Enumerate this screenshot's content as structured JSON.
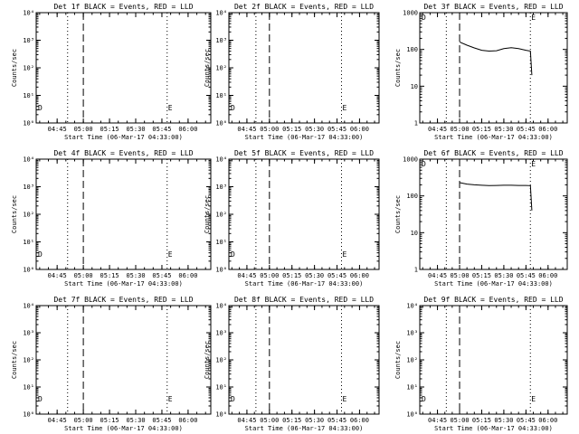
{
  "chart_data": [
    {
      "type": "line",
      "title": "Det 1f BLACK = Events, RED = LLD",
      "ylabel": "Counts/sec",
      "xlabel": "Start Time (06-Mar-17 04:33:00)",
      "x_ticks": [
        "04:45",
        "05:00",
        "05:15",
        "05:30",
        "05:45",
        "06:00"
      ],
      "yscale": "log",
      "ylim": [
        1,
        10000
      ],
      "y_ticks": [
        "10⁰",
        "10¹",
        "10²",
        "10³",
        "10⁴"
      ],
      "markers": [
        "D",
        "E"
      ],
      "series": []
    },
    {
      "type": "line",
      "title": "Det 2f BLACK = Events, RED = LLD",
      "ylabel": "Counts/sec",
      "xlabel": "Start Time (06-Mar-17 04:33:00)",
      "x_ticks": [
        "04:45",
        "05:00",
        "05:15",
        "05:30",
        "05:45",
        "06:00"
      ],
      "yscale": "log",
      "ylim": [
        1,
        10000
      ],
      "y_ticks": [
        "10⁰",
        "10¹",
        "10²",
        "10³",
        "10⁴"
      ],
      "markers": [
        "D",
        "E"
      ],
      "series": []
    },
    {
      "type": "line",
      "title": "Det 3f BLACK = Events, RED = LLD",
      "ylabel": "Counts/sec",
      "xlabel": "Start Time (06-Mar-17 04:33:00)",
      "x_ticks": [
        "04:45",
        "05:00",
        "05:15",
        "05:30",
        "05:45",
        "06:00"
      ],
      "yscale": "log",
      "ylim": [
        1,
        1000
      ],
      "y_ticks": [
        "1",
        "10",
        "100",
        "1000"
      ],
      "markers": [
        "D",
        "E"
      ],
      "series": [
        {
          "color": "#000000",
          "x": [
            "05:00",
            "05:05",
            "05:10",
            "05:15",
            "05:20",
            "05:25",
            "05:30",
            "05:35",
            "05:40",
            "05:45",
            "05:48",
            "05:49"
          ],
          "values": [
            160,
            130,
            110,
            95,
            90,
            92,
            105,
            112,
            105,
            95,
            90,
            20
          ]
        }
      ]
    },
    {
      "type": "line",
      "title": "Det 4f BLACK = Events, RED = LLD",
      "ylabel": "Counts/sec",
      "xlabel": "Start Time (06-Mar-17 04:33:00)",
      "x_ticks": [
        "04:45",
        "05:00",
        "05:15",
        "05:30",
        "05:45",
        "06:00"
      ],
      "yscale": "log",
      "ylim": [
        1,
        10000
      ],
      "y_ticks": [
        "10⁰",
        "10¹",
        "10²",
        "10³",
        "10⁴"
      ],
      "markers": [
        "D",
        "E"
      ],
      "series": []
    },
    {
      "type": "line",
      "title": "Det 5f BLACK = Events, RED = LLD",
      "ylabel": "Counts/sec",
      "xlabel": "Start Time (06-Mar-17 04:33:00)",
      "x_ticks": [
        "04:45",
        "05:00",
        "05:15",
        "05:30",
        "05:45",
        "06:00"
      ],
      "yscale": "log",
      "ylim": [
        1,
        10000
      ],
      "y_ticks": [
        "10⁰",
        "10¹",
        "10²",
        "10³",
        "10⁴"
      ],
      "markers": [
        "D",
        "E"
      ],
      "series": []
    },
    {
      "type": "line",
      "title": "Det 6f BLACK = Events, RED = LLD",
      "ylabel": "Counts/sec",
      "xlabel": "Start Time (06-Mar-17 04:33:00)",
      "x_ticks": [
        "04:45",
        "05:00",
        "05:15",
        "05:30",
        "05:45",
        "06:00"
      ],
      "yscale": "log",
      "ylim": [
        1,
        1000
      ],
      "y_ticks": [
        "1",
        "10",
        "100",
        "1000"
      ],
      "markers": [
        "D",
        "E"
      ],
      "series": [
        {
          "color": "#000000",
          "x": [
            "05:00",
            "05:05",
            "05:10",
            "05:15",
            "05:20",
            "05:25",
            "05:30",
            "05:35",
            "05:40",
            "05:45",
            "05:48",
            "05:49"
          ],
          "values": [
            230,
            210,
            200,
            195,
            190,
            192,
            195,
            195,
            193,
            192,
            190,
            40
          ]
        }
      ]
    },
    {
      "type": "line",
      "title": "Det 7f BLACK = Events, RED = LLD",
      "ylabel": "Counts/sec",
      "xlabel": "Start Time (06-Mar-17 04:33:00)",
      "x_ticks": [
        "04:45",
        "05:00",
        "05:15",
        "05:30",
        "05:45",
        "06:00"
      ],
      "yscale": "log",
      "ylim": [
        1,
        10000
      ],
      "y_ticks": [
        "10⁰",
        "10¹",
        "10²",
        "10³",
        "10⁴"
      ],
      "markers": [
        "D",
        "E"
      ],
      "series": []
    },
    {
      "type": "line",
      "title": "Det 8f BLACK = Events, RED = LLD",
      "ylabel": "Counts/sec",
      "xlabel": "Start Time (06-Mar-17 04:33:00)",
      "x_ticks": [
        "04:45",
        "05:00",
        "05:15",
        "05:30",
        "05:45",
        "06:00"
      ],
      "yscale": "log",
      "ylim": [
        1,
        10000
      ],
      "y_ticks": [
        "10⁰",
        "10¹",
        "10²",
        "10³",
        "10⁴"
      ],
      "markers": [
        "D",
        "E"
      ],
      "series": []
    },
    {
      "type": "line",
      "title": "Det 9f BLACK = Events, RED = LLD",
      "ylabel": "Counts/sec",
      "xlabel": "Start Time (06-Mar-17 04:33:00)",
      "x_ticks": [
        "04:45",
        "05:00",
        "05:15",
        "05:30",
        "05:45",
        "06:00"
      ],
      "yscale": "log",
      "ylim": [
        1,
        10000
      ],
      "y_ticks": [
        "10⁰",
        "10¹",
        "10²",
        "10³",
        "10⁴"
      ],
      "markers": [
        "D",
        "E"
      ],
      "series": []
    }
  ],
  "time_axis": {
    "range": [
      "04:33",
      "06:13"
    ]
  },
  "reference_lines": [
    {
      "time": "04:51",
      "style": "dotted"
    },
    {
      "time": "05:00",
      "style": "dashed"
    },
    {
      "time": "05:48",
      "style": "dotted"
    }
  ]
}
